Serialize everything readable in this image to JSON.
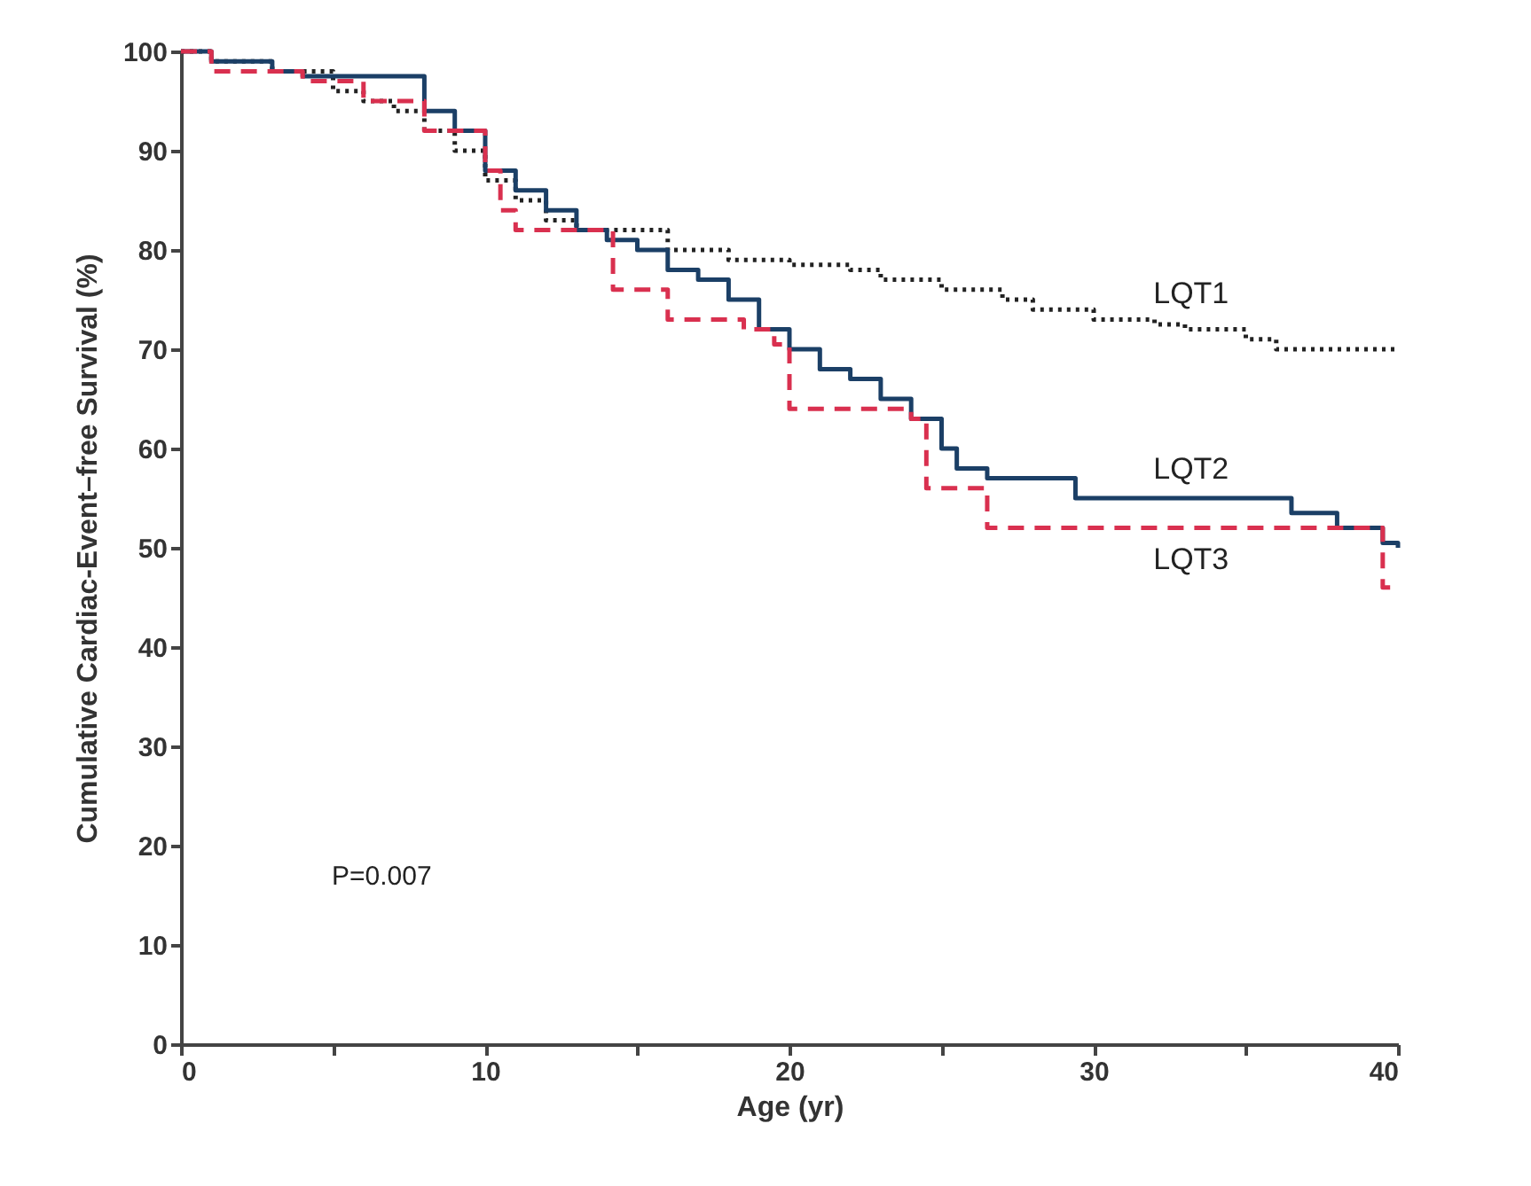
{
  "chart_data": {
    "type": "step",
    "xlabel": "Age (yr)",
    "ylabel": "Cumulative Cardiac-Event–free Survival (%)",
    "xlim": [
      0,
      40
    ],
    "xticks": [
      0,
      {
        "value": 5,
        "label": null
      },
      10,
      {
        "value": 15,
        "label": null
      },
      20,
      {
        "value": 25,
        "label": null
      },
      30,
      {
        "value": 35,
        "label": null
      },
      40
    ],
    "ylim": [
      0,
      100
    ],
    "yticks": [
      0,
      10,
      20,
      30,
      40,
      50,
      60,
      70,
      80,
      90,
      100
    ],
    "grid": false,
    "marker": "none",
    "annotations": [
      "P=0.007"
    ],
    "series": [
      {
        "name": "LQT1",
        "color": "#222222",
        "line_style": "dotted",
        "x": [
          0,
          1,
          3,
          5,
          6,
          7,
          8,
          9,
          10,
          11,
          12,
          13,
          14,
          16,
          18,
          20,
          22,
          23,
          25,
          27,
          28,
          30,
          32,
          33,
          35,
          36,
          40
        ],
        "values": [
          100,
          99,
          98,
          96,
          95,
          94,
          92,
          90,
          87,
          85,
          83,
          82,
          82,
          80,
          79,
          78.5,
          78,
          77,
          76,
          75,
          74,
          73,
          72.5,
          72,
          71,
          70,
          70
        ]
      },
      {
        "name": "LQT2",
        "color": "#1b3f66",
        "line_style": "solid",
        "x": [
          0,
          1,
          3,
          4,
          7,
          8,
          9,
          10,
          11,
          12,
          13,
          14,
          15,
          16,
          17,
          18,
          19,
          20,
          21,
          22,
          23,
          24,
          25,
          25.5,
          26.5,
          29.4,
          35.8,
          36.5,
          38,
          39.5,
          40
        ],
        "values": [
          100,
          99,
          98,
          97.5,
          97.5,
          94,
          92,
          88,
          86,
          84,
          82,
          81,
          80,
          78,
          77,
          75,
          72,
          70,
          68,
          67,
          65,
          63,
          60,
          58,
          57,
          55,
          55,
          53.5,
          52,
          50.5,
          50
        ]
      },
      {
        "name": "LQT3",
        "color": "#d9304f",
        "line_style": "dashed",
        "x": [
          0,
          1,
          4,
          6,
          8,
          10,
          10.5,
          11,
          14.2,
          16,
          18.5,
          19.5,
          20,
          24,
          24.5,
          26.5,
          39.5,
          40
        ],
        "values": [
          100,
          98,
          97,
          95,
          92,
          88,
          84,
          82,
          76,
          73,
          72,
          70.5,
          64,
          63,
          56,
          52,
          46,
          46
        ]
      }
    ]
  }
}
